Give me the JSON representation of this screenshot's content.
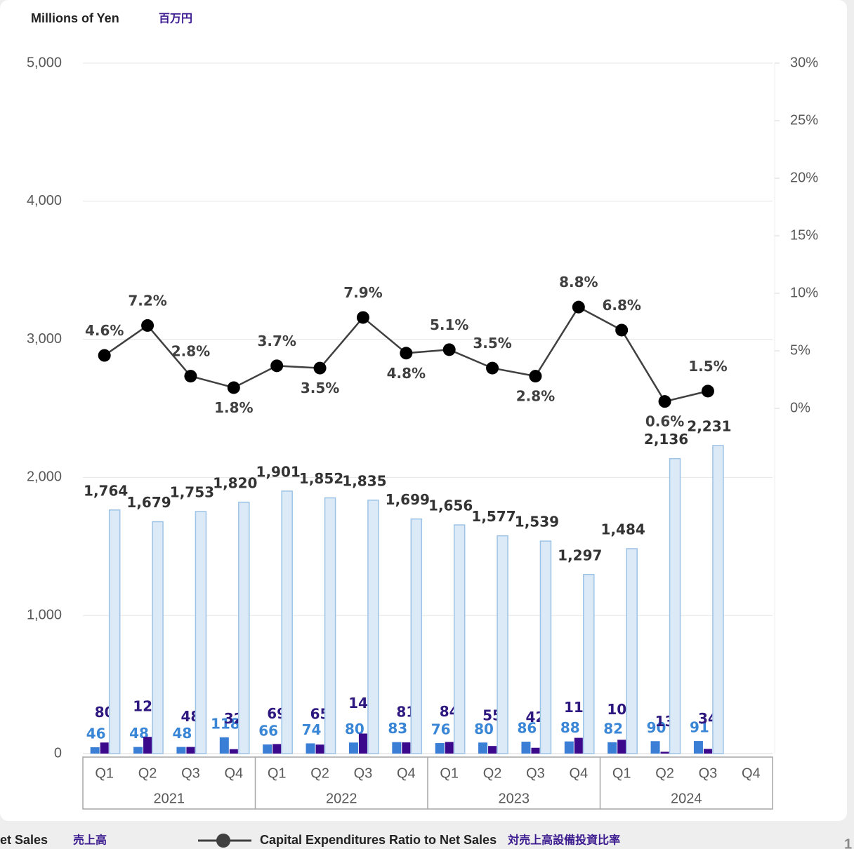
{
  "chart_data": {
    "type": "bar",
    "title": "Millions of Yen",
    "title_ja": "百万円",
    "categories": [
      "Q1",
      "Q2",
      "Q3",
      "Q4",
      "Q1",
      "Q2",
      "Q3",
      "Q4",
      "Q1",
      "Q2",
      "Q3",
      "Q4",
      "Q1",
      "Q2",
      "Q3",
      "Q4"
    ],
    "category_groups": [
      "2021",
      "2022",
      "2023",
      "2024"
    ],
    "ylim": [
      0,
      5000
    ],
    "yticks": [
      0,
      {
        "value": 1000,
        "label": "1,000"
      },
      {
        "value": 2000,
        "label": "2,000"
      },
      {
        "value": 3000,
        "label": "3,000"
      },
      {
        "value": 4000,
        "label": "4,000"
      },
      {
        "value": 5000,
        "label": "5,000"
      }
    ],
    "y2lim": [
      -30,
      30
    ],
    "y2ticks": [
      {
        "value": 0,
        "label": "0%"
      },
      {
        "value": 5,
        "label": "5%"
      },
      {
        "value": 10,
        "label": "10%"
      },
      {
        "value": 15,
        "label": "15%"
      },
      {
        "value": 20,
        "label": "20%"
      },
      {
        "value": 25,
        "label": "25%"
      },
      {
        "value": 30,
        "label": "30%"
      }
    ],
    "grid": true,
    "series": [
      {
        "color": "#3a7fd5",
        "label_color": "#3a86d6",
        "values": [
          46,
          48,
          48,
          118,
          66,
          74,
          80,
          83,
          76,
          80,
          86,
          88,
          82,
          90,
          91,
          null
        ]
      },
      {
        "color": "#3b0a8c",
        "label_color": "#2e1880",
        "values": [
          80,
          121,
          48,
          32,
          69,
          65,
          145,
          81,
          84,
          55,
          42,
          114,
          100,
          13,
          34,
          null
        ]
      },
      {
        "name": "et Sales",
        "name_ja": "売上高",
        "color": "#dce9f7",
        "edge_color": "#9dc3e6",
        "label_color": "#333333",
        "values": [
          1764,
          1679,
          1753,
          1820,
          1901,
          1852,
          1835,
          1699,
          1656,
          1577,
          1539,
          1297,
          1484,
          2136,
          2231,
          null
        ],
        "value_labels": [
          "1,764",
          "1,679",
          "1,753",
          "1,820",
          "1,901",
          "1,852",
          "1,835",
          "1,699",
          "1,656",
          "1,577",
          "1,539",
          "1,297",
          "1,484",
          "2,136",
          "2,231",
          null
        ]
      },
      {
        "name": "Capital Expenditures Ratio to Net Sales",
        "name_ja": "対売上高設備投資比率",
        "type": "line",
        "axis": "y2",
        "color": "#000000",
        "line_color": "#404040",
        "label_color": "#404040",
        "values": [
          4.6,
          7.2,
          2.8,
          1.8,
          3.7,
          3.5,
          7.9,
          4.8,
          5.1,
          3.5,
          2.8,
          8.8,
          6.8,
          0.6,
          1.5,
          null
        ],
        "value_labels": [
          "4.6%",
          "7.2%",
          "2.8%",
          "1.8%",
          "3.7%",
          "3.5%",
          "7.9%",
          "4.8%",
          "5.1%",
          "3.5%",
          "2.8%",
          "8.8%",
          "6.8%",
          "0.6%",
          "1.5%",
          null
        ]
      }
    ],
    "page_number": "1"
  }
}
